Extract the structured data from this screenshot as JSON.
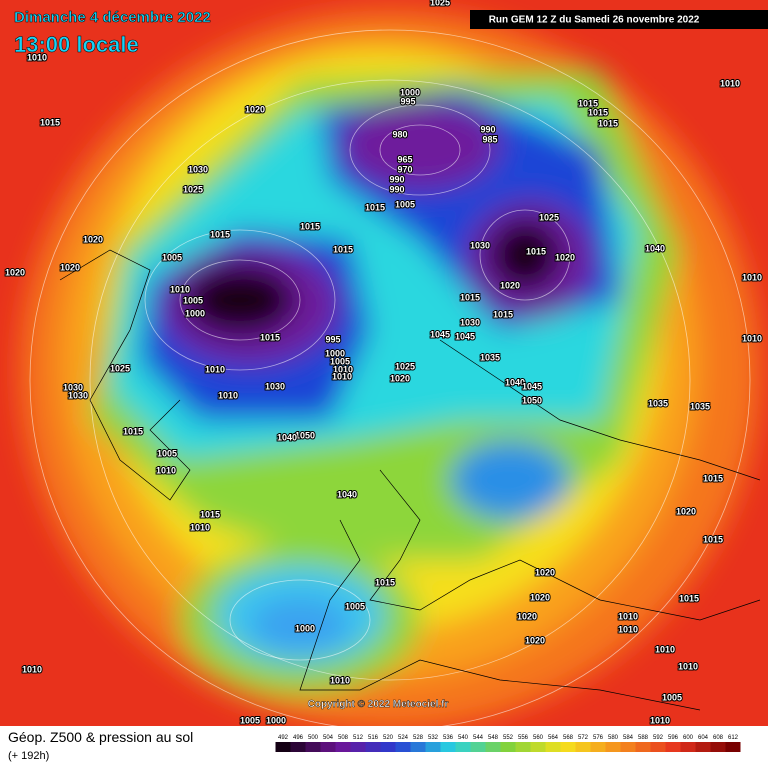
{
  "header": {
    "title": "Dimanche 4 décembre 2022",
    "time": "13:00 locale",
    "run": "Run GEM 12 Z du Samedi 26 novembre 2022"
  },
  "footer": {
    "product": "Géop. Z500 & pression au sol",
    "lead": "(+ 192h)",
    "copyright": "Copyright © 2022 Meteociel.fr"
  },
  "isobar_labels": [
    "1025",
    "1010",
    "1015",
    "1020",
    "1000",
    "995",
    "980",
    "990",
    "985",
    "965",
    "970",
    "990",
    "990",
    "1015",
    "1005",
    "1030",
    "1025",
    "1015",
    "1015",
    "1015",
    "1020",
    "1020",
    "1020",
    "1005",
    "1010",
    "1005",
    "1000",
    "1015",
    "995",
    "1000",
    "1005",
    "1010",
    "1010",
    "1025",
    "1030",
    "1030",
    "1010",
    "1010",
    "1030",
    "1015",
    "1050",
    "1040",
    "1005",
    "1010",
    "1040",
    "1015",
    "1010",
    "1015",
    "1015",
    "1015",
    "1025",
    "1030",
    "1015",
    "1020",
    "1020",
    "1015",
    "1015",
    "1030",
    "1045",
    "1045",
    "1035",
    "1025",
    "1020",
    "1040",
    "1045",
    "1050",
    "1040",
    "1010",
    "1010",
    "1035",
    "1035",
    "1015",
    "1020",
    "1015",
    "1020",
    "1015",
    "1015",
    "1020",
    "1020",
    "1005",
    "1000",
    "1020",
    "1010",
    "1010",
    "1010",
    "1010",
    "1010",
    "1010",
    "1005",
    "1005",
    "1010",
    "1000",
    "1010"
  ],
  "legend": {
    "values": [
      492,
      496,
      500,
      504,
      508,
      512,
      516,
      520,
      524,
      528,
      532,
      536,
      540,
      544,
      548,
      552,
      556,
      560,
      564,
      568,
      572,
      576,
      580,
      584,
      588,
      592,
      596,
      600,
      604,
      608,
      612
    ]
  }
}
